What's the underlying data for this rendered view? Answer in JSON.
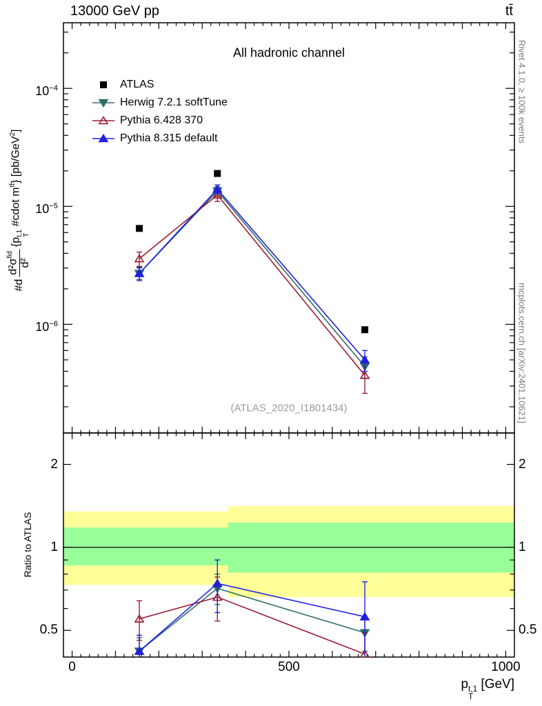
{
  "header": {
    "left": "13000 GeV pp",
    "right": "tt̄"
  },
  "right_margin": {
    "top": "Rivet 4.1.0, ≥ 100k events",
    "bottom": "mcplots.cern.ch [arXiv:2401.10621]"
  },
  "labels": {
    "title": "All hadronic channel",
    "watermark": "(ATLAS_2020_I1801434)",
    "ratio_ylabel": "Ratio to ATLAS",
    "xlabel": {
      "base": "p",
      "sup": "t,1",
      "sub": "T",
      "units": " [GeV]"
    },
    "ylabel": {
      "prefix": "#d",
      "num": "d²σ",
      "num_sup": "fid",
      "den": "d²",
      "e1": "{p",
      "e1_sub": "T",
      "e1_sup": "t,1",
      "e2": " #cdot m",
      "e2_sup": "tt̄",
      "e3": "} [pb/GeV",
      "e3_sup": "2",
      "e4": "]"
    }
  },
  "legend": {
    "items": [
      {
        "label": "ATLAS"
      },
      {
        "label": "Herwig 7.2.1 softTune"
      },
      {
        "label": "Pythia 6.428 370"
      },
      {
        "label": "Pythia 8.315 default"
      }
    ]
  },
  "chart_data": {
    "type": "line",
    "title": "All hadronic channel",
    "x_values": [
      155,
      335,
      675
    ],
    "xlim": [
      -20,
      1020
    ],
    "xticks": [
      {
        "v": 0,
        "label": "0"
      },
      {
        "v": 500,
        "label": "500"
      },
      {
        "v": 1000,
        "label": "1000"
      }
    ],
    "main_panel": {
      "yscale": "log",
      "ylim": [
        1.2e-07,
        0.00036
      ],
      "yticks": [
        {
          "v": 0.0001,
          "base": "10",
          "exp": "−4"
        },
        {
          "v": 1e-05,
          "base": "10",
          "exp": "−5"
        },
        {
          "v": 1e-06,
          "base": "10",
          "exp": "−6"
        }
      ],
      "series": [
        {
          "name": "ATLAS",
          "color": "#000000",
          "marker": "square",
          "filled": true,
          "line": false,
          "y": [
            6.5e-06,
            1.9e-05,
            9e-07
          ],
          "yerr": [
            0,
            0,
            0
          ]
        },
        {
          "name": "Herwig 7.2.1 softTune",
          "color": "#2d6d66",
          "marker": "triangle-down",
          "filled": true,
          "line": true,
          "y": [
            2.7e-06,
            1.35e-05,
            4.4e-07
          ],
          "yerr": [
            3e-07,
            1.2e-06,
            9e-08
          ]
        },
        {
          "name": "Pythia 6.428 370",
          "color": "#9b1c31",
          "marker": "triangle-up",
          "filled": false,
          "line": true,
          "y": [
            3.6e-06,
            1.25e-05,
            3.7e-07
          ],
          "yerr": [
            5e-07,
            1.5e-06,
            1.1e-07
          ]
        },
        {
          "name": "Pythia 8.315 default",
          "color": "#2020e0",
          "marker": "triangle-up",
          "filled": true,
          "line": true,
          "y": [
            2.7e-06,
            1.4e-05,
            5e-07
          ],
          "yerr": [
            3.5e-07,
            1.2e-06,
            1e-07
          ]
        }
      ]
    },
    "ratio_panel": {
      "yscale": "log",
      "ylim": [
        0.4,
        2.6
      ],
      "yticks": [
        {
          "v": 0.5,
          "label": "0.5"
        },
        {
          "v": 1,
          "label": "1"
        },
        {
          "v": 2,
          "label": "2"
        }
      ],
      "minor_ticks": [
        0.6,
        0.7,
        0.8,
        0.9
      ],
      "reference_line": 1,
      "bands": {
        "yellow_color": "#ffff99",
        "green_color": "#99ff99",
        "segments": [
          {
            "x0": -20,
            "x1": 360,
            "yellow": [
              0.73,
              1.35
            ],
            "green": [
              0.86,
              1.18
            ]
          },
          {
            "x0": 360,
            "x1": 1020,
            "yellow": [
              0.66,
              1.41
            ],
            "green": [
              0.81,
              1.23
            ]
          }
        ]
      },
      "series": [
        {
          "name": "Herwig 7.2.1 softTune",
          "color": "#2d6d66",
          "marker": "triangle-down",
          "filled": true,
          "line": true,
          "y": [
            0.42,
            0.71,
            0.49
          ],
          "yerr": [
            0.05,
            0.09,
            0.07
          ]
        },
        {
          "name": "Pythia 6.428 370",
          "color": "#9b1c31",
          "marker": "triangle-up",
          "filled": false,
          "line": true,
          "y": [
            0.55,
            0.66,
            0.41
          ],
          "yerr": [
            0.09,
            0.12,
            0.08
          ]
        },
        {
          "name": "Pythia 8.315 default",
          "color": "#2020e0",
          "marker": "triangle-up",
          "filled": true,
          "line": true,
          "y": [
            0.42,
            0.74,
            0.56
          ],
          "yerr": [
            0.06,
            0.16,
            0.19
          ]
        }
      ]
    }
  }
}
